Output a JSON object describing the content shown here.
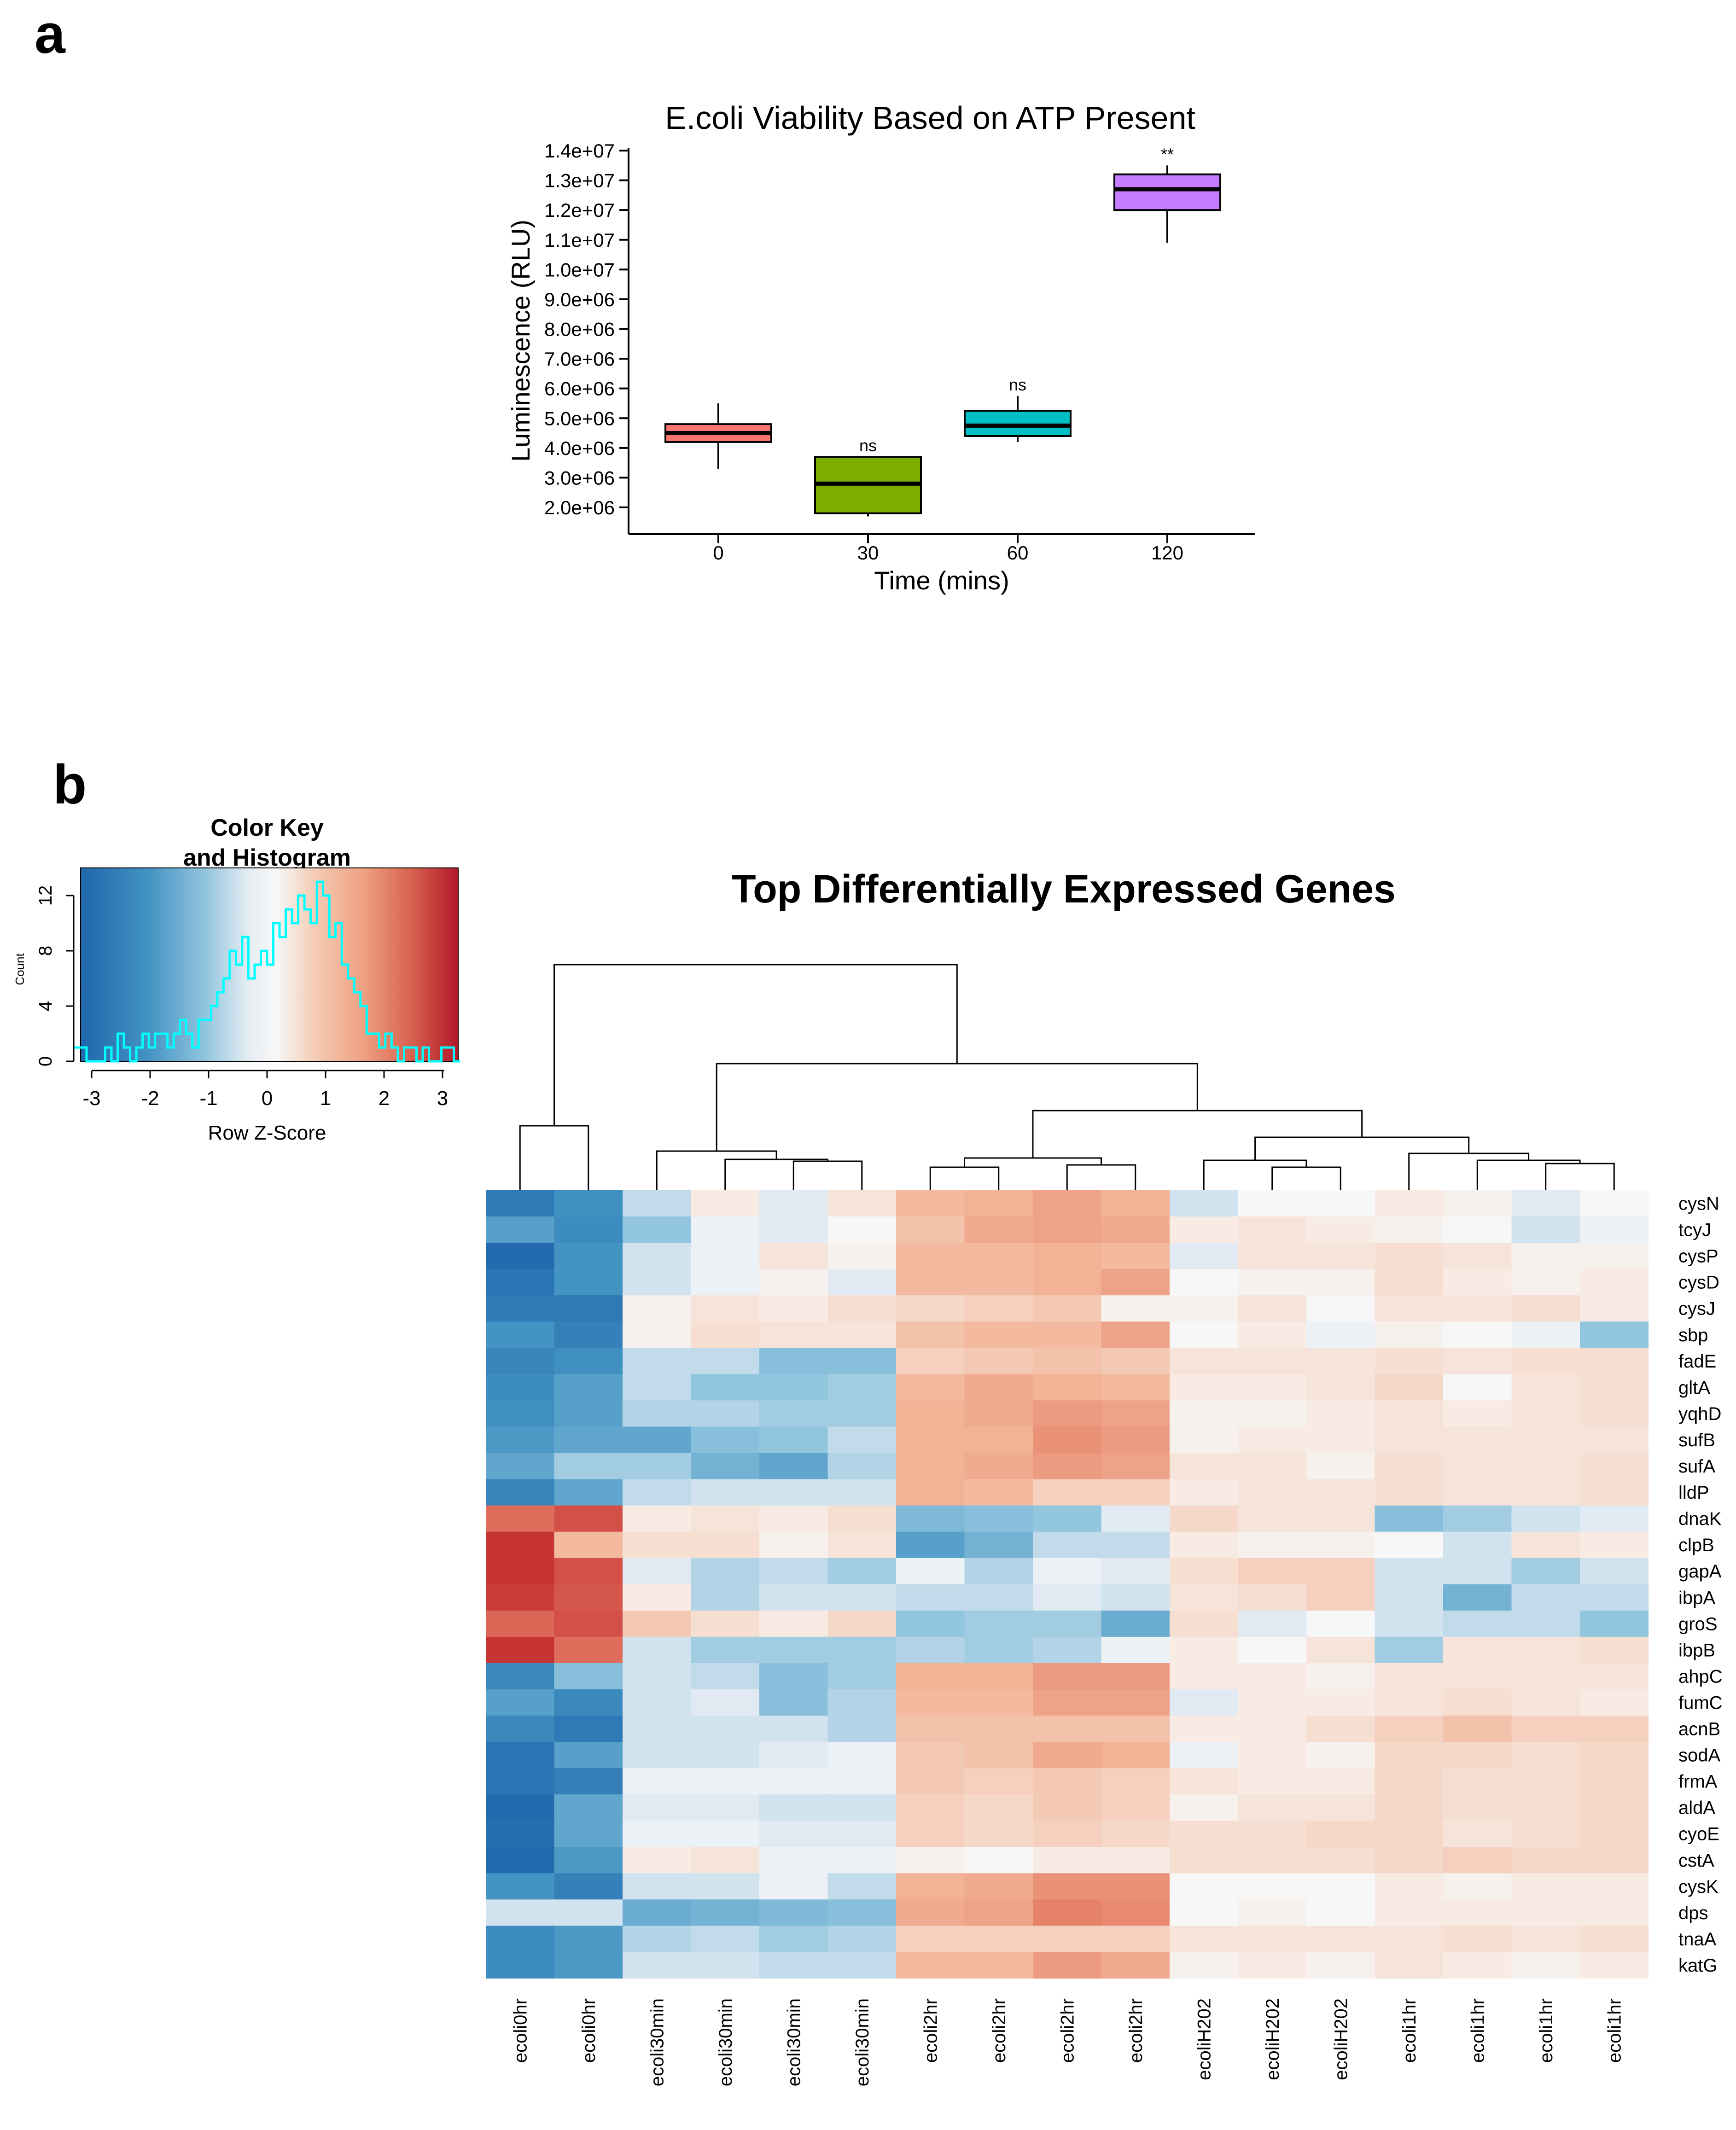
{
  "panel_labels": {
    "a": "a",
    "b": "b"
  },
  "chart_data": [
    {
      "type": "box",
      "title": "E.coli Viability Based on ATP Present",
      "xlabel": "Time (mins)",
      "ylabel": "Luminescence (RLU)",
      "ylim": [
        1500000,
        14200000
      ],
      "yticks": [
        2000000,
        3000000,
        4000000,
        5000000,
        6000000,
        7000000,
        8000000,
        9000000,
        10000000,
        11000000,
        12000000,
        13000000,
        14000000
      ],
      "ytick_labels": [
        "2.0e+06",
        "3.0e+06",
        "4.0e+06",
        "5.0e+06",
        "6.0e+06",
        "7.0e+06",
        "8.0e+06",
        "9.0e+06",
        "1.0e+07",
        "1.1e+07",
        "1.2e+07",
        "1.3e+07",
        "1.4e+07"
      ],
      "categories": [
        "0",
        "30",
        "60",
        "120"
      ],
      "boxes": [
        {
          "category": "0",
          "whisker_low": 3300000,
          "q1": 4200000,
          "median": 4500000,
          "q3": 4800000,
          "whisker_high": 5500000,
          "color": "#F8766D",
          "annotation": ""
        },
        {
          "category": "30",
          "whisker_low": 1700000,
          "q1": 1800000,
          "median": 2800000,
          "q3": 3700000,
          "whisker_high": 3700000,
          "color": "#7CAE00",
          "annotation": "ns"
        },
        {
          "category": "60",
          "whisker_low": 4200000,
          "q1": 4400000,
          "median": 4750000,
          "q3": 5250000,
          "whisker_high": 5750000,
          "color": "#00BFC4",
          "annotation": "ns"
        },
        {
          "category": "120",
          "whisker_low": 10900000,
          "q1": 12000000,
          "median": 12700000,
          "q3": 13200000,
          "whisker_high": 13500000,
          "color": "#C77CFF",
          "annotation": "**"
        }
      ]
    },
    {
      "type": "heatmap",
      "title": "Top Differentially Expressed Genes",
      "columns": [
        "ecoli0hr",
        "ecoli0hr",
        "ecoli30min",
        "ecoli30min",
        "ecoli30min",
        "ecoli30min",
        "ecoli2hr",
        "ecoli2hr",
        "ecoli2hr",
        "ecoli2hr",
        "ecoliH202",
        "ecoliH202",
        "ecoliH202",
        "ecoli1hr",
        "ecoli1hr",
        "ecoli1hr",
        "ecoli1hr"
      ],
      "rows": [
        "cysN",
        "tcyJ",
        "cysP",
        "cysD",
        "cysJ",
        "sbp",
        "fadE",
        "gltA",
        "yqhD",
        "sufB",
        "sufA",
        "lldP",
        "dnaK",
        "clpB",
        "gapA",
        "ibpA",
        "groS",
        "ibpB",
        "ahpC",
        "fumC",
        "acnB",
        "sodA",
        "frmA",
        "aldA",
        "cyoE",
        "cstA",
        "cysK",
        "dps",
        "tnaA",
        "katG"
      ],
      "values": [
        [
          -2.2,
          -1.6,
          -0.4,
          0.2,
          -0.2,
          0.3,
          0.9,
          1.0,
          1.2,
          1.0,
          -0.3,
          0.0,
          0.0,
          0.2,
          0.1,
          -0.2,
          0.0
        ],
        [
          -1.3,
          -1.7,
          -0.7,
          -0.1,
          -0.2,
          0.0,
          0.8,
          1.1,
          1.2,
          1.1,
          0.2,
          0.3,
          0.2,
          0.1,
          0.0,
          -0.3,
          -0.1
        ],
        [
          -2.6,
          -1.5,
          -0.3,
          -0.1,
          0.3,
          0.1,
          0.9,
          0.9,
          1.0,
          0.9,
          -0.2,
          0.3,
          0.3,
          0.4,
          0.3,
          0.1,
          0.1
        ],
        [
          -2.3,
          -1.5,
          -0.3,
          -0.1,
          0.1,
          -0.2,
          0.9,
          0.9,
          1.0,
          1.2,
          0.0,
          0.1,
          0.1,
          0.4,
          0.2,
          0.1,
          0.2
        ],
        [
          -2.2,
          -2.2,
          0.1,
          0.3,
          0.2,
          0.4,
          0.5,
          0.6,
          0.7,
          0.1,
          0.1,
          0.3,
          0.0,
          0.3,
          0.3,
          0.4,
          0.2
        ],
        [
          -1.5,
          -2.0,
          0.1,
          0.4,
          0.3,
          0.3,
          0.8,
          0.9,
          0.9,
          1.2,
          0.0,
          0.2,
          -0.1,
          0.1,
          0.0,
          -0.1,
          -0.7
        ],
        [
          -1.9,
          -1.6,
          -0.4,
          -0.4,
          -0.8,
          -0.8,
          0.6,
          0.7,
          0.8,
          0.7,
          0.3,
          0.3,
          0.3,
          0.4,
          0.3,
          0.4,
          0.4
        ],
        [
          -1.7,
          -1.3,
          -0.4,
          -0.7,
          -0.7,
          -0.6,
          0.9,
          1.1,
          1.0,
          0.9,
          0.2,
          0.2,
          0.3,
          0.5,
          0.0,
          0.3,
          0.4
        ],
        [
          -1.6,
          -1.3,
          -0.5,
          -0.5,
          -0.6,
          -0.6,
          1.0,
          1.1,
          1.3,
          1.2,
          0.1,
          0.1,
          0.2,
          0.3,
          0.2,
          0.3,
          0.4
        ],
        [
          -1.4,
          -1.2,
          -1.2,
          -0.8,
          -0.7,
          -0.4,
          1.0,
          1.0,
          1.4,
          1.3,
          0.1,
          0.2,
          0.2,
          0.3,
          0.3,
          0.3,
          0.3
        ],
        [
          -1.2,
          -0.6,
          -0.6,
          -1.0,
          -1.2,
          -0.5,
          1.0,
          1.1,
          1.3,
          1.2,
          0.3,
          0.3,
          0.1,
          0.4,
          0.3,
          0.3,
          0.4
        ],
        [
          -1.9,
          -1.2,
          -0.4,
          -0.3,
          -0.3,
          -0.3,
          1.0,
          0.9,
          0.6,
          0.6,
          0.2,
          0.3,
          0.3,
          0.4,
          0.3,
          0.3,
          0.4
        ],
        [
          1.9,
          2.3,
          0.2,
          0.3,
          0.2,
          0.4,
          -0.9,
          -0.8,
          -0.7,
          -0.2,
          0.5,
          0.3,
          0.3,
          -0.8,
          -0.6,
          -0.3,
          -0.2
        ],
        [
          2.7,
          0.9,
          0.4,
          0.4,
          0.1,
          0.3,
          -1.3,
          -1.0,
          -0.4,
          -0.4,
          0.2,
          0.1,
          0.1,
          0.0,
          -0.3,
          0.3,
          0.2
        ],
        [
          2.7,
          2.3,
          -0.2,
          -0.5,
          -0.4,
          -0.6,
          -0.1,
          -0.5,
          -0.1,
          -0.2,
          0.4,
          0.6,
          0.6,
          -0.3,
          -0.3,
          -0.6,
          -0.3
        ],
        [
          2.6,
          2.2,
          0.2,
          -0.5,
          -0.3,
          -0.3,
          -0.4,
          -0.4,
          -0.2,
          -0.3,
          0.3,
          0.4,
          0.6,
          -0.3,
          -1.0,
          -0.4,
          -0.4
        ],
        [
          2.0,
          2.3,
          0.7,
          0.4,
          0.2,
          0.5,
          -0.7,
          -0.6,
          -0.6,
          -1.1,
          0.4,
          -0.2,
          0.0,
          -0.3,
          -0.4,
          -0.4,
          -0.7
        ],
        [
          2.7,
          1.9,
          -0.3,
          -0.6,
          -0.6,
          -0.6,
          -0.5,
          -0.6,
          -0.5,
          -0.1,
          0.2,
          0.0,
          0.3,
          -0.6,
          0.3,
          0.3,
          0.4
        ],
        [
          -1.8,
          -0.8,
          -0.3,
          -0.4,
          -0.8,
          -0.6,
          1.0,
          1.0,
          1.3,
          1.3,
          0.2,
          0.2,
          0.1,
          0.3,
          0.3,
          0.3,
          0.3
        ],
        [
          -1.3,
          -1.8,
          -0.3,
          -0.2,
          -0.8,
          -0.5,
          0.9,
          0.9,
          1.2,
          1.2,
          -0.2,
          0.2,
          0.2,
          0.3,
          0.4,
          0.3,
          0.2
        ],
        [
          -1.8,
          -2.2,
          -0.3,
          -0.3,
          -0.3,
          -0.5,
          0.8,
          0.8,
          0.8,
          0.8,
          0.2,
          0.2,
          0.4,
          0.6,
          0.8,
          0.6,
          0.6
        ],
        [
          -2.3,
          -1.3,
          -0.3,
          -0.3,
          -0.2,
          -0.1,
          0.7,
          0.8,
          1.1,
          1.0,
          -0.1,
          0.2,
          0.1,
          0.5,
          0.5,
          0.4,
          0.5
        ],
        [
          -2.3,
          -2.0,
          -0.1,
          -0.1,
          -0.1,
          -0.1,
          0.7,
          0.6,
          0.7,
          0.6,
          0.3,
          0.2,
          0.2,
          0.5,
          0.4,
          0.4,
          0.5
        ],
        [
          -2.6,
          -1.2,
          -0.2,
          -0.2,
          -0.3,
          -0.3,
          0.6,
          0.5,
          0.7,
          0.6,
          0.1,
          0.3,
          0.3,
          0.5,
          0.4,
          0.4,
          0.5
        ],
        [
          -2.5,
          -1.2,
          -0.1,
          -0.1,
          -0.2,
          -0.2,
          0.6,
          0.5,
          0.6,
          0.5,
          0.4,
          0.4,
          0.5,
          0.5,
          0.3,
          0.4,
          0.5
        ],
        [
          -2.6,
          -1.4,
          0.2,
          0.3,
          -0.1,
          -0.1,
          0.1,
          0.0,
          0.2,
          0.2,
          0.4,
          0.4,
          0.4,
          0.5,
          0.6,
          0.5,
          0.5
        ],
        [
          -1.5,
          -2.0,
          -0.3,
          -0.3,
          -0.1,
          -0.4,
          1.0,
          1.1,
          1.4,
          1.4,
          0.0,
          0.0,
          0.0,
          0.2,
          0.1,
          0.2,
          0.2
        ],
        [
          -0.3,
          -0.3,
          -1.1,
          -1.0,
          -0.9,
          -0.8,
          1.1,
          1.2,
          1.6,
          1.5,
          0.0,
          0.1,
          0.0,
          0.2,
          0.2,
          0.2,
          0.2
        ],
        [
          -1.7,
          -1.4,
          -0.5,
          -0.4,
          -0.6,
          -0.5,
          0.6,
          0.6,
          0.6,
          0.6,
          0.3,
          0.3,
          0.3,
          0.3,
          0.4,
          0.3,
          0.4
        ],
        [
          -1.7,
          -1.4,
          -0.3,
          -0.3,
          -0.4,
          -0.4,
          0.9,
          0.9,
          1.3,
          1.1,
          0.1,
          0.2,
          0.1,
          0.3,
          0.2,
          0.1,
          0.2
        ]
      ],
      "color_key": {
        "title_line1": "Color Key",
        "title_line2": "and Histogram",
        "xlabel": "Row Z-Score",
        "ylabel": "Count",
        "xticks": [
          -3,
          -2,
          -1,
          0,
          1,
          2,
          3
        ],
        "yticks": [
          0,
          4,
          8,
          12
        ],
        "range": [
          -3.3,
          3.3
        ],
        "colors": [
          "#2166AC",
          "#F7F7F7",
          "#B2182B"
        ],
        "histogram_color": "#00FFFF",
        "histogram_counts": [
          1,
          1,
          0,
          0,
          0,
          1,
          0,
          2,
          1,
          0,
          1,
          2,
          1,
          2,
          2,
          1,
          2,
          3,
          2,
          1,
          3,
          3,
          4,
          5,
          6,
          8,
          7,
          9,
          6,
          7,
          8,
          7,
          10,
          9,
          11,
          10,
          12,
          11,
          10,
          13,
          12,
          9,
          10,
          7,
          6,
          5,
          4,
          2,
          2,
          1,
          2,
          1,
          0,
          1,
          1,
          0,
          1,
          0,
          0,
          1,
          1,
          0
        ]
      }
    }
  ]
}
